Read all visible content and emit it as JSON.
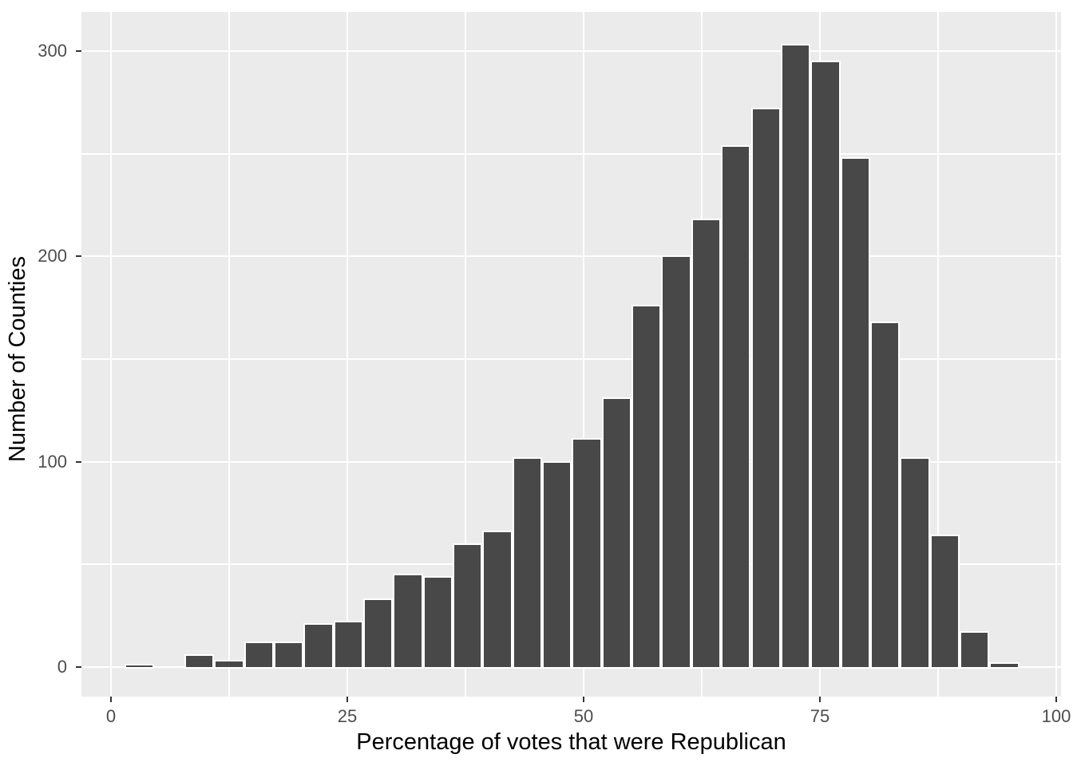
{
  "chart_data": {
    "type": "bar",
    "subtype": "histogram",
    "title": "",
    "xlabel": "Percentage of votes that were Republican",
    "ylabel": "Number of Counties",
    "bin_start": 1.44,
    "bin_width": 3.155,
    "counts": [
      1,
      0,
      6,
      3,
      12,
      12,
      21,
      22,
      33,
      45,
      44,
      60,
      66,
      102,
      100,
      111,
      131,
      176,
      200,
      218,
      254,
      272,
      303,
      295,
      248,
      168,
      102,
      64,
      17,
      2
    ],
    "x_ticks": [
      0,
      25,
      50,
      75,
      100
    ],
    "y_ticks": [
      0,
      100,
      200,
      300
    ],
    "x_minor_gridlines": [
      12.5,
      37.5,
      62.5,
      87.5
    ],
    "y_minor_gridlines": [
      50,
      150,
      250
    ],
    "xlim": [
      -3.13,
      100.51
    ],
    "ylim": [
      -14.38,
      319.12
    ],
    "grid": true,
    "legend": "none",
    "colors": {
      "panel_background": "#EBEBEB",
      "figure_background": "#FFFFFF",
      "gridline": "#FFFFFF",
      "bar_fill": "#484848",
      "bar_border": "#FFFFFF",
      "tick_label": "#4D4D4D",
      "axis_title": "#000000",
      "tick_mark": "#333333"
    }
  }
}
